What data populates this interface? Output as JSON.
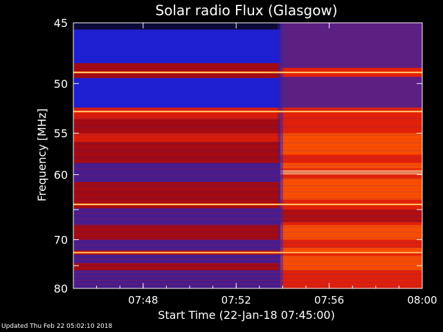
{
  "chart_data": {
    "type": "heatmap",
    "title": "Solar radio Flux (Glasgow)",
    "xlabel": "Start Time (22-Jan-18 07:45:00)",
    "ylabel": "Frequency [MHz]",
    "x_range_minutes": [
      0,
      15
    ],
    "x_ticks": [
      {
        "minute": 3,
        "label": "07:48"
      },
      {
        "minute": 7,
        "label": "07:52"
      },
      {
        "minute": 11,
        "label": "07:56"
      },
      {
        "minute": 15,
        "label": "08:00"
      }
    ],
    "y_range_mhz": [
      45,
      80
    ],
    "y_ticks": [
      45,
      50,
      55,
      60,
      65,
      70,
      75,
      80
    ],
    "y_tick_labels": [
      "45",
      "50",
      "55",
      "60",
      "70",
      "80"
    ],
    "y_labeled_ticks": [
      45,
      50,
      55,
      60,
      70,
      80
    ],
    "y_scale": "reciprocal",
    "transition_minute": 8.9,
    "colors": {
      "dark_blue": "#0b0b3a",
      "blue": "#1d1fd0",
      "purple": "#3a20a0",
      "dark_red": "#a00a14",
      "red": "#e0200a",
      "orange": "#ff5a00",
      "yellow": "#ffe8a0"
    },
    "bright_lines_mhz": [
      49.0,
      52.7,
      64.2,
      72.4
    ],
    "blue_bands_mhz": [
      [
        45.5,
        48.2
      ],
      [
        49.5,
        52.3
      ]
    ],
    "grid": false
  },
  "footer": {
    "updated": "Updated Thu Feb 22 05:02:10 2018"
  }
}
